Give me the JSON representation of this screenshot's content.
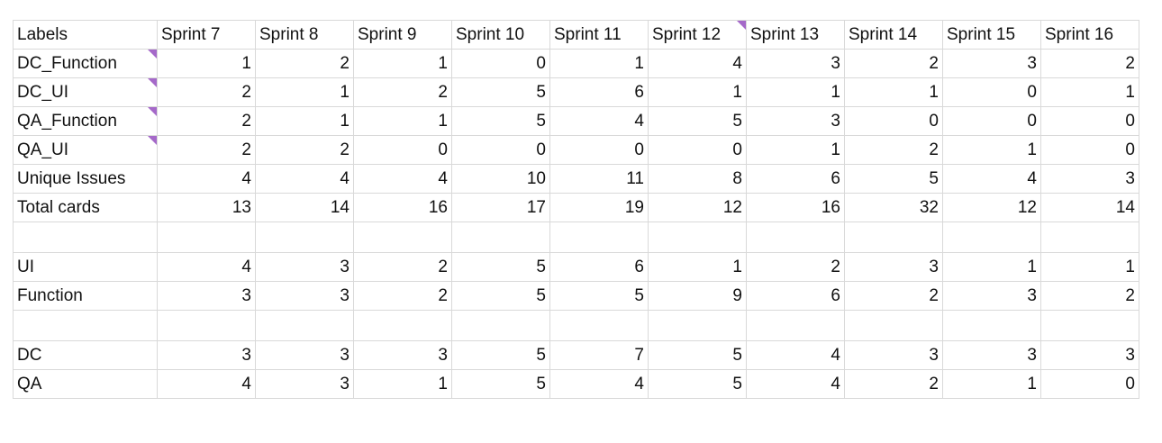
{
  "colors": {
    "grid": "#d9d9d9",
    "comment_marker": "#a569c9"
  },
  "headers": [
    "Labels",
    "Sprint 7",
    "Sprint 8",
    "Sprint 9",
    "Sprint 10",
    "Sprint 11",
    "Sprint 12",
    "Sprint 13",
    "Sprint 14",
    "Sprint 15",
    "Sprint 16"
  ],
  "rows": [
    {
      "label": "DC_Function",
      "values": [
        "1",
        "2",
        "1",
        "0",
        "1",
        "4",
        "3",
        "2",
        "3",
        "2"
      ]
    },
    {
      "label": "DC_UI",
      "values": [
        "2",
        "1",
        "2",
        "5",
        "6",
        "1",
        "1",
        "1",
        "0",
        "1"
      ]
    },
    {
      "label": "QA_Function",
      "values": [
        "2",
        "1",
        "1",
        "5",
        "4",
        "5",
        "3",
        "0",
        "0",
        "0"
      ]
    },
    {
      "label": "QA_UI",
      "values": [
        "2",
        "2",
        "0",
        "0",
        "0",
        "0",
        "1",
        "2",
        "1",
        "0"
      ]
    },
    {
      "label": "Unique Issues",
      "values": [
        "4",
        "4",
        "4",
        "10",
        "11",
        "8",
        "6",
        "5",
        "4",
        "3"
      ]
    },
    {
      "label": "Total cards",
      "values": [
        "13",
        "14",
        "16",
        "17",
        "19",
        "12",
        "16",
        "32",
        "12",
        "14"
      ]
    },
    {
      "label": "",
      "values": [
        "",
        "",
        "",
        "",
        "",
        "",
        "",
        "",
        "",
        ""
      ]
    },
    {
      "label": "UI",
      "values": [
        "4",
        "3",
        "2",
        "5",
        "6",
        "1",
        "2",
        "3",
        "1",
        "1"
      ]
    },
    {
      "label": "Function",
      "values": [
        "3",
        "3",
        "2",
        "5",
        "5",
        "9",
        "6",
        "2",
        "3",
        "2"
      ]
    },
    {
      "label": "",
      "values": [
        "",
        "",
        "",
        "",
        "",
        "",
        "",
        "",
        "",
        ""
      ]
    },
    {
      "label": "DC",
      "values": [
        "3",
        "3",
        "3",
        "5",
        "7",
        "5",
        "4",
        "3",
        "3",
        "3"
      ]
    },
    {
      "label": "QA",
      "values": [
        "4",
        "3",
        "1",
        "5",
        "4",
        "5",
        "4",
        "2",
        "1",
        "0"
      ]
    }
  ]
}
